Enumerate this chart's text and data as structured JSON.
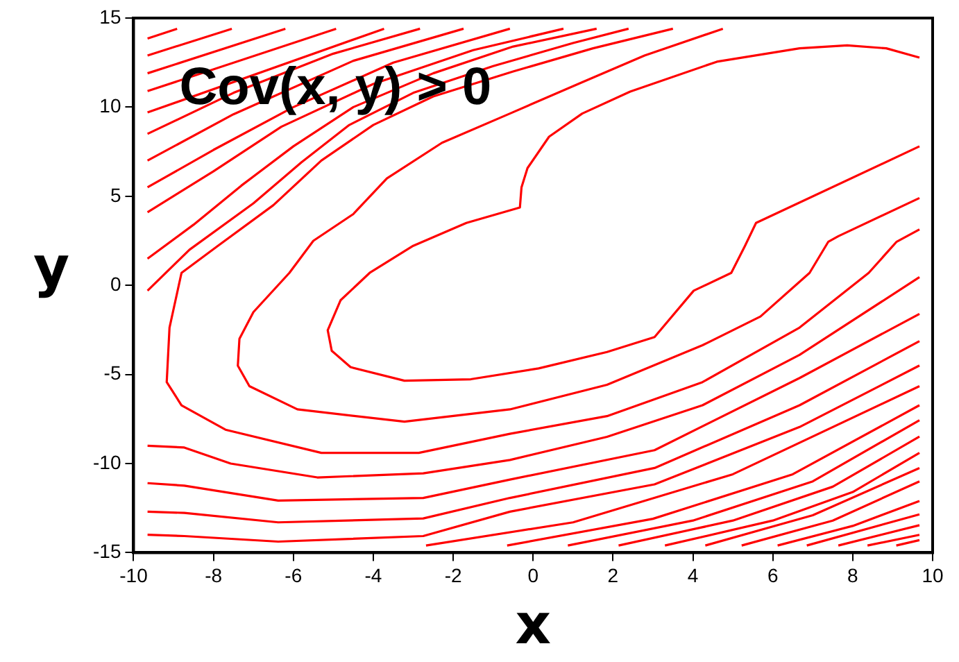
{
  "chart_data": {
    "type": "line",
    "title": "Cov(x, y) > 0",
    "xlabel": "x",
    "ylabel": "y",
    "xlim": [
      -10,
      10
    ],
    "ylim": [
      -15,
      15
    ],
    "xticks": [
      -10,
      -8,
      -6,
      -4,
      -2,
      0,
      2,
      4,
      6,
      8,
      10
    ],
    "yticks": [
      -15,
      -10,
      -5,
      0,
      5,
      10,
      15
    ],
    "legend": false,
    "marker": "none",
    "line_style": "solid",
    "series": [
      {
        "color": "#ff0000",
        "x": [
          9.67,
          8.84,
          7.86,
          6.67,
          4.6,
          2.43,
          1.23,
          0.4,
          -0.14,
          -0.29,
          -0.33,
          -1.67,
          -3.0,
          -4.09,
          -4.82,
          -5.14,
          -5.04,
          -4.57,
          -3.22,
          -1.56,
          0.14,
          1.85,
          3.04,
          4.02,
          4.96,
          5.3,
          5.58,
          9.67
        ],
        "values": [
          12.78,
          13.3,
          13.47,
          13.3,
          12.55,
          10.87,
          9.64,
          8.34,
          6.58,
          5.5,
          4.37,
          3.5,
          2.22,
          0.7,
          -0.84,
          -2.52,
          -3.67,
          -4.59,
          -5.35,
          -5.27,
          -4.66,
          -3.74,
          -2.9,
          -0.3,
          0.7,
          2.2,
          3.5,
          7.8
        ]
      },
      {
        "color": "#ff0000",
        "x": [
          4.75,
          2.79,
          1.23,
          -0.58,
          -2.28,
          -3.66,
          -4.5,
          -5.5,
          -6.1,
          -7.0,
          -7.35,
          -7.39,
          -7.1,
          -5.9,
          -3.22,
          -0.58,
          1.85,
          4.24,
          5.69,
          6.92,
          7.39,
          7.64,
          9.67
        ],
        "values": [
          14.4,
          12.9,
          11.4,
          9.64,
          8.0,
          6.0,
          4.0,
          2.5,
          0.7,
          -1.5,
          -3.0,
          -4.51,
          -5.66,
          -6.96,
          -7.65,
          -6.96,
          -5.58,
          -3.36,
          -1.75,
          0.7,
          2.45,
          2.76,
          4.9
        ]
      },
      {
        "color": "#ff0000",
        "x": [
          3.5,
          1.5,
          -0.5,
          -2.5,
          -4.0,
          -5.3,
          -6.5,
          -7.9,
          -8.8,
          -9.1,
          -9.17,
          -8.8,
          -7.7,
          -5.3,
          -2.86,
          -0.58,
          1.85,
          4.24,
          6.67,
          8.4,
          9.1,
          9.67
        ],
        "values": [
          14.4,
          13.3,
          12.0,
          10.6,
          9.0,
          7.0,
          4.5,
          2.2,
          0.7,
          -2.37,
          -5.43,
          -6.73,
          -8.1,
          -9.4,
          -9.4,
          -8.33,
          -7.34,
          -5.43,
          -2.37,
          0.7,
          2.45,
          3.14
        ]
      },
      {
        "color": "#ff0000",
        "x": [
          -9.65,
          -8.6,
          -7.0,
          -5.8,
          -4.6,
          -3.0,
          -1.0,
          1.0,
          2.39
        ],
        "values": [
          -0.3,
          2.0,
          4.6,
          6.9,
          9.0,
          10.8,
          12.3,
          13.6,
          14.4
        ]
      },
      {
        "color": "#ff0000",
        "x": [
          -9.65,
          -8.5,
          -7.3,
          -6.0,
          -4.5,
          -2.5,
          -0.5,
          1.59
        ],
        "values": [
          1.5,
          3.4,
          5.6,
          7.8,
          10.0,
          11.9,
          13.4,
          14.4
        ]
      },
      {
        "color": "#ff0000",
        "x": [
          -9.65,
          -8.0,
          -6.3,
          -4.0,
          -1.5,
          0.76
        ],
        "values": [
          4.1,
          6.4,
          8.9,
          11.3,
          13.2,
          14.4
        ]
      },
      {
        "color": "#ff0000",
        "x": [
          -9.65,
          -8.0,
          -6.0,
          -3.5,
          -0.58
        ],
        "values": [
          5.5,
          7.6,
          10.0,
          12.5,
          14.4
        ]
      },
      {
        "color": "#ff0000",
        "x": [
          -9.65,
          -7.5,
          -4.5,
          -1.74
        ],
        "values": [
          7.0,
          9.6,
          12.6,
          14.4
        ]
      },
      {
        "color": "#ff0000",
        "x": [
          -9.65,
          -7.5,
          -5.0,
          -2.83
        ],
        "values": [
          8.5,
          10.8,
          13.0,
          14.4
        ]
      },
      {
        "color": "#ff0000",
        "x": [
          -9.65,
          -3.73
        ],
        "values": [
          9.7,
          14.4
        ]
      },
      {
        "color": "#ff0000",
        "x": [
          -9.65,
          -4.93
        ],
        "values": [
          10.9,
          14.4
        ]
      },
      {
        "color": "#ff0000",
        "x": [
          -9.65,
          -6.2
        ],
        "values": [
          11.9,
          14.4
        ]
      },
      {
        "color": "#ff0000",
        "x": [
          -9.65,
          -7.54
        ],
        "values": [
          12.9,
          14.4
        ]
      },
      {
        "color": "#ff0000",
        "x": [
          -9.65,
          -8.91
        ],
        "values": [
          13.85,
          14.4
        ]
      },
      {
        "color": "#ff0000",
        "x": [
          -9.65,
          -8.73,
          -7.57,
          -5.4,
          -2.75,
          -0.58,
          1.85,
          4.24,
          6.67,
          9.67
        ],
        "values": [
          -9.0,
          -9.1,
          -10.0,
          -10.78,
          -10.55,
          -9.8,
          -8.5,
          -6.73,
          -3.9,
          0.46
        ]
      },
      {
        "color": "#ff0000",
        "x": [
          -9.65,
          -8.73,
          -6.38,
          -2.75,
          -0.58,
          3.04,
          6.67,
          9.67
        ],
        "values": [
          -11.1,
          -11.24,
          -12.08,
          -11.93,
          -10.9,
          -9.25,
          -5.2,
          -1.6
        ]
      },
      {
        "color": "#ff0000",
        "x": [
          -9.65,
          -8.73,
          -6.38,
          -2.75,
          -0.58,
          3.04,
          6.67,
          9.67
        ],
        "values": [
          -12.7,
          -12.77,
          -13.3,
          -13.08,
          -11.93,
          -10.25,
          -6.73,
          -3.13
        ]
      },
      {
        "color": "#ff0000",
        "x": [
          -9.65,
          -8.73,
          -6.38,
          -2.75,
          -0.58,
          3.04,
          6.67,
          9.67
        ],
        "values": [
          -14.0,
          -14.07,
          -14.38,
          -14.07,
          -12.7,
          -11.17,
          -7.95,
          -4.5
        ]
      },
      {
        "color": "#ff0000",
        "x": [
          -2.68,
          1.0,
          5.0,
          9.67
        ],
        "values": [
          -14.6,
          -13.3,
          -10.6,
          -5.66
        ]
      },
      {
        "color": "#ff0000",
        "x": [
          -0.65,
          3.0,
          6.5,
          9.67
        ],
        "values": [
          -14.6,
          -13.1,
          -10.6,
          -6.73
        ]
      },
      {
        "color": "#ff0000",
        "x": [
          0.87,
          4.0,
          7.0,
          9.67
        ],
        "values": [
          -14.6,
          -13.2,
          -11.0,
          -7.57
        ]
      },
      {
        "color": "#ff0000",
        "x": [
          2.14,
          5.0,
          7.5,
          9.67
        ],
        "values": [
          -14.6,
          -13.2,
          -11.3,
          -8.49
        ]
      },
      {
        "color": "#ff0000",
        "x": [
          3.3,
          6.0,
          8.0,
          9.67
        ],
        "values": [
          -14.6,
          -13.2,
          -11.6,
          -9.4
        ]
      },
      {
        "color": "#ff0000",
        "x": [
          4.31,
          7.0,
          9.67
        ],
        "values": [
          -14.6,
          -12.9,
          -10.25
        ]
      },
      {
        "color": "#ff0000",
        "x": [
          5.22,
          7.5,
          9.67
        ],
        "values": [
          -14.6,
          -13.2,
          -11.0
        ]
      },
      {
        "color": "#ff0000",
        "x": [
          6.12,
          8.0,
          9.67
        ],
        "values": [
          -14.6,
          -13.5,
          -12.1
        ]
      },
      {
        "color": "#ff0000",
        "x": [
          6.85,
          9.67
        ],
        "values": [
          -14.6,
          -12.85
        ]
      },
      {
        "color": "#ff0000",
        "x": [
          7.64,
          9.67
        ],
        "values": [
          -14.6,
          -13.46
        ]
      },
      {
        "color": "#ff0000",
        "x": [
          8.37,
          9.67
        ],
        "values": [
          -14.6,
          -14.0
        ]
      },
      {
        "color": "#ff0000",
        "x": [
          9.09,
          9.67
        ],
        "values": [
          -14.6,
          -14.3
        ]
      }
    ]
  }
}
